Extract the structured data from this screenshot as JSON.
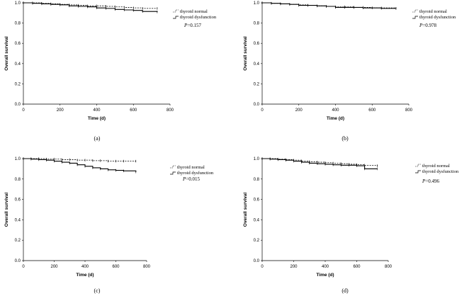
{
  "chart_data": [
    {
      "type": "line",
      "panel_label": "(a)",
      "xlabel": "Time (d)",
      "ylabel": "Overall survival",
      "xlim": [
        0,
        800
      ],
      "ylim": [
        0,
        1.0
      ],
      "xticks": [
        0,
        200,
        400,
        600,
        800
      ],
      "yticks": [
        0.0,
        0.2,
        0.4,
        0.6,
        0.8,
        1.0
      ],
      "legend_position": "top-right",
      "p_value": "=0.157",
      "p_label": "P",
      "series": [
        {
          "name": "thyroid normal",
          "style": "dashed",
          "x": [
            0,
            50,
            100,
            150,
            200,
            250,
            300,
            350,
            400,
            450,
            500,
            550,
            600,
            650,
            730
          ],
          "y": [
            1.0,
            1.0,
            0.995,
            0.99,
            0.985,
            0.98,
            0.975,
            0.97,
            0.97,
            0.965,
            0.96,
            0.955,
            0.95,
            0.945,
            0.945
          ]
        },
        {
          "name": "thyroid dysfunction",
          "style": "solid",
          "x": [
            0,
            50,
            100,
            150,
            200,
            250,
            300,
            350,
            400,
            450,
            500,
            550,
            600,
            650,
            730
          ],
          "y": [
            1.0,
            0.995,
            0.99,
            0.985,
            0.98,
            0.97,
            0.965,
            0.96,
            0.95,
            0.945,
            0.935,
            0.93,
            0.925,
            0.915,
            0.91
          ]
        }
      ]
    },
    {
      "type": "line",
      "panel_label": "(b)",
      "xlabel": "Time (d)",
      "ylabel": "Overall survival",
      "xlim": [
        0,
        800
      ],
      "ylim": [
        0,
        1.0
      ],
      "xticks": [
        0,
        200,
        400,
        600,
        800
      ],
      "yticks": [
        0.0,
        0.2,
        0.4,
        0.6,
        0.8,
        1.0
      ],
      "legend_position": "top-right",
      "p_value": "=0.978",
      "p_label": "P",
      "series": [
        {
          "name": "thyroid normal",
          "style": "dashed",
          "x": [
            0,
            50,
            100,
            150,
            200,
            250,
            300,
            350,
            400,
            450,
            500,
            550,
            600,
            650,
            730
          ],
          "y": [
            1.0,
            0.995,
            0.99,
            0.985,
            0.98,
            0.975,
            0.97,
            0.965,
            0.96,
            0.96,
            0.955,
            0.955,
            0.95,
            0.95,
            0.945
          ]
        },
        {
          "name": "thyroid dysfunction",
          "style": "solid",
          "x": [
            0,
            50,
            100,
            150,
            200,
            250,
            300,
            350,
            400,
            450,
            500,
            550,
            600,
            650,
            730
          ],
          "y": [
            1.0,
            0.995,
            0.99,
            0.985,
            0.975,
            0.975,
            0.97,
            0.965,
            0.955,
            0.955,
            0.955,
            0.95,
            0.95,
            0.945,
            0.945
          ]
        }
      ]
    },
    {
      "type": "line",
      "panel_label": "(c)",
      "xlabel": "Time (d)",
      "ylabel": "Overall survival",
      "xlim": [
        0,
        800
      ],
      "ylim": [
        0,
        1.0
      ],
      "xticks": [
        0,
        200,
        400,
        600,
        800
      ],
      "yticks": [
        0.0,
        0.2,
        0.4,
        0.6,
        0.8,
        1.0
      ],
      "legend_position": "top-right",
      "p_value": "=0.015",
      "p_label": "P",
      "series": [
        {
          "name": "thyroid normal",
          "style": "dashed",
          "x": [
            0,
            50,
            100,
            150,
            200,
            250,
            300,
            350,
            400,
            450,
            500,
            550,
            600,
            650,
            730
          ],
          "y": [
            1.0,
            1.0,
            1.0,
            0.995,
            0.995,
            0.99,
            0.99,
            0.985,
            0.985,
            0.98,
            0.98,
            0.975,
            0.975,
            0.975,
            0.975
          ]
        },
        {
          "name": "thyroid dysfunction",
          "style": "solid",
          "x": [
            0,
            50,
            100,
            150,
            200,
            250,
            300,
            350,
            400,
            450,
            500,
            550,
            600,
            650,
            730
          ],
          "y": [
            1.0,
            0.995,
            0.99,
            0.985,
            0.975,
            0.965,
            0.955,
            0.94,
            0.925,
            0.91,
            0.9,
            0.89,
            0.885,
            0.88,
            0.87
          ]
        }
      ]
    },
    {
      "type": "line",
      "panel_label": "(d)",
      "xlabel": "Time (d)",
      "ylabel": "Overall survival",
      "xlim": [
        0,
        800
      ],
      "ylim": [
        0,
        1.0
      ],
      "xticks": [
        0,
        200,
        400,
        600,
        800
      ],
      "yticks": [
        0.0,
        0.2,
        0.4,
        0.6,
        0.8,
        1.0
      ],
      "legend_position": "top-right",
      "p_value": "=0.496",
      "p_label": "P",
      "series": [
        {
          "name": "thyroid normal",
          "style": "dashed",
          "x": [
            0,
            50,
            100,
            150,
            200,
            250,
            300,
            350,
            400,
            450,
            500,
            550,
            600,
            650,
            730
          ],
          "y": [
            1.0,
            1.0,
            0.995,
            0.99,
            0.985,
            0.975,
            0.97,
            0.965,
            0.96,
            0.955,
            0.95,
            0.945,
            0.94,
            0.935,
            0.93
          ]
        },
        {
          "name": "thyroid dysfunction",
          "style": "solid",
          "x": [
            0,
            50,
            100,
            150,
            200,
            250,
            300,
            350,
            400,
            450,
            500,
            550,
            600,
            650,
            730
          ],
          "y": [
            1.0,
            0.995,
            0.99,
            0.985,
            0.975,
            0.965,
            0.955,
            0.95,
            0.945,
            0.94,
            0.935,
            0.935,
            0.93,
            0.9,
            0.9
          ]
        }
      ]
    }
  ]
}
